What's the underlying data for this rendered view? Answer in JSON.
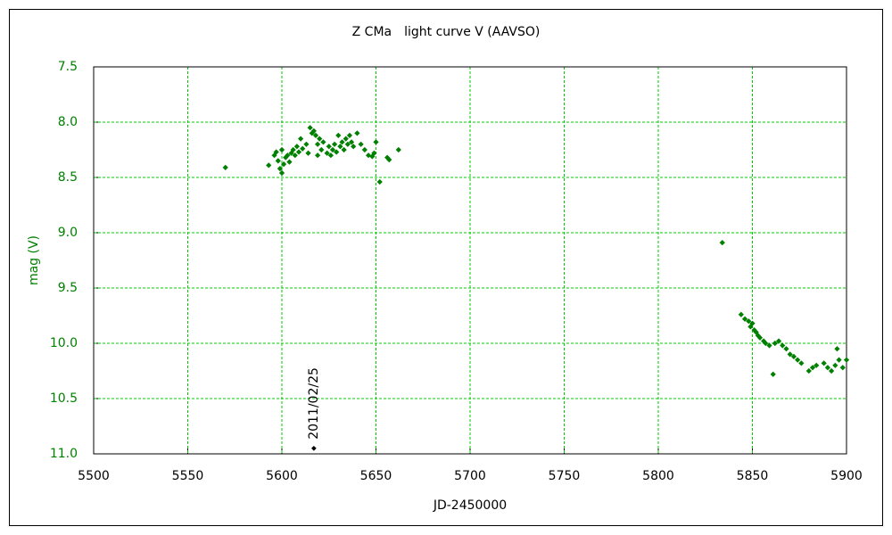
{
  "chart_data": {
    "type": "scatter",
    "title": "Z CMa　light curve  V (AAVSO)",
    "xlabel": "JD-2450000",
    "ylabel": "mag (V)",
    "color": "#008000",
    "x": [
      5570,
      5593,
      5596,
      5597,
      5598,
      5599,
      5600,
      5600,
      5601,
      5602,
      5603,
      5604,
      5605,
      5606,
      5607,
      5608,
      5609,
      5610,
      5611,
      5613,
      5614,
      5615,
      5616,
      5617,
      5618,
      5619,
      5619,
      5620,
      5621,
      5622,
      5624,
      5625,
      5626,
      5627,
      5628,
      5629,
      5630,
      5631,
      5632,
      5633,
      5634,
      5635,
      5636,
      5637,
      5638,
      5640,
      5642,
      5644,
      5646,
      5648,
      5649,
      5650,
      5652,
      5656,
      5657,
      5662,
      5834,
      5844,
      5846,
      5848,
      5849,
      5850,
      5851,
      5852,
      5853,
      5854,
      5856,
      5857,
      5859,
      5861,
      5862,
      5864,
      5866,
      5868,
      5870,
      5872,
      5874,
      5876,
      5880,
      5882,
      5884,
      5888,
      5890,
      5892,
      5894,
      5895,
      5896,
      5898,
      5900
    ],
    "values": [
      8.41,
      8.39,
      8.3,
      8.27,
      8.35,
      8.42,
      8.46,
      8.25,
      8.38,
      8.32,
      8.3,
      8.36,
      8.28,
      8.25,
      8.3,
      8.22,
      8.27,
      8.15,
      8.24,
      8.2,
      8.28,
      8.05,
      8.1,
      8.08,
      8.12,
      8.3,
      8.2,
      8.15,
      8.25,
      8.18,
      8.28,
      8.22,
      8.3,
      8.25,
      8.2,
      8.27,
      8.12,
      8.22,
      8.18,
      8.25,
      8.15,
      8.2,
      8.12,
      8.18,
      8.22,
      8.1,
      8.2,
      8.25,
      8.3,
      8.31,
      8.28,
      8.18,
      8.54,
      8.32,
      8.34,
      8.25,
      9.09,
      9.74,
      9.78,
      9.8,
      9.85,
      9.82,
      9.88,
      9.9,
      9.93,
      9.95,
      9.98,
      10.0,
      10.02,
      10.28,
      10.0,
      9.98,
      10.02,
      10.05,
      10.1,
      10.12,
      10.15,
      10.18,
      10.25,
      10.22,
      10.2,
      10.18,
      10.22,
      10.25,
      10.2,
      10.05,
      10.15,
      10.22,
      10.15
    ],
    "xlim": [
      5500,
      5900
    ],
    "xticks": [
      5500,
      5550,
      5600,
      5650,
      5700,
      5750,
      5800,
      5850,
      5900
    ],
    "ylim": [
      7.5,
      11.0
    ],
    "yinvert": true,
    "yticks": [
      7.5,
      {
        "value": 8,
        "label": "8.0"
      },
      8.5,
      {
        "value": 9,
        "label": "9.0"
      },
      9.5,
      {
        "value": 10,
        "label": "10.0"
      },
      10.5,
      {
        "value": 11,
        "label": "11.0"
      }
    ],
    "grid": true,
    "annotation": {
      "text": "2011/02/25",
      "x": 5617,
      "y": 10.95,
      "color": "#000000"
    }
  }
}
